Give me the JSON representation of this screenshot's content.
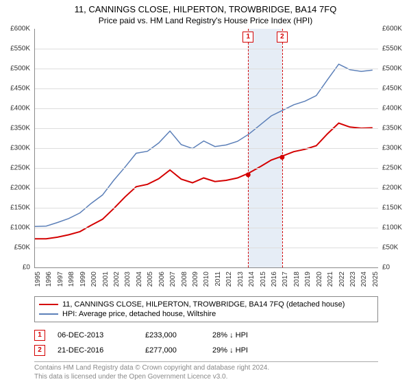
{
  "title": "11, CANNINGS CLOSE, HILPERTON, TROWBRIDGE, BA14 7FQ",
  "subtitle": "Price paid vs. HM Land Registry's House Price Index (HPI)",
  "chart": {
    "type": "line",
    "background_color": "#ffffff",
    "grid_color": "#dddddd",
    "axis_color": "#888888",
    "x": {
      "ticks": [
        "1995",
        "1996",
        "1997",
        "1998",
        "1999",
        "2000",
        "2001",
        "2002",
        "2003",
        "2004",
        "2005",
        "2006",
        "2007",
        "2008",
        "2009",
        "2010",
        "2011",
        "2012",
        "2013",
        "2014",
        "2015",
        "2016",
        "2017",
        "2018",
        "2019",
        "2020",
        "2021",
        "2022",
        "2023",
        "2024",
        "2025"
      ],
      "min": 1995,
      "max": 2025.5
    },
    "y": {
      "min": 0,
      "max": 600000,
      "step": 50000,
      "labels": [
        "£0",
        "£50K",
        "£100K",
        "£150K",
        "£200K",
        "£250K",
        "£300K",
        "£350K",
        "£400K",
        "£450K",
        "£500K",
        "£550K",
        "£600K"
      ]
    },
    "series": [
      {
        "name": "property",
        "color": "#d40000",
        "width": 2,
        "points": [
          [
            1995,
            72000
          ],
          [
            1996,
            72000
          ],
          [
            1997,
            76000
          ],
          [
            1998,
            82000
          ],
          [
            1999,
            90000
          ],
          [
            2000,
            106000
          ],
          [
            2001,
            121000
          ],
          [
            2002,
            148000
          ],
          [
            2003,
            177000
          ],
          [
            2004,
            203000
          ],
          [
            2005,
            209000
          ],
          [
            2006,
            223000
          ],
          [
            2007,
            245000
          ],
          [
            2008,
            222000
          ],
          [
            2009,
            213000
          ],
          [
            2010,
            225000
          ],
          [
            2011,
            216000
          ],
          [
            2012,
            219000
          ],
          [
            2013,
            225000
          ],
          [
            2014,
            237000
          ],
          [
            2015,
            253000
          ],
          [
            2016,
            270000
          ],
          [
            2017,
            280000
          ],
          [
            2018,
            291000
          ],
          [
            2019,
            297000
          ],
          [
            2020,
            306000
          ],
          [
            2021,
            336000
          ],
          [
            2022,
            363000
          ],
          [
            2023,
            353000
          ],
          [
            2024,
            350000
          ],
          [
            2025,
            351000
          ]
        ]
      },
      {
        "name": "hpi",
        "color": "#5b7fb8",
        "width": 1.5,
        "points": [
          [
            1995,
            103000
          ],
          [
            1996,
            104000
          ],
          [
            1997,
            113000
          ],
          [
            1998,
            123000
          ],
          [
            1999,
            137000
          ],
          [
            2000,
            161000
          ],
          [
            2001,
            182000
          ],
          [
            2002,
            219000
          ],
          [
            2003,
            252000
          ],
          [
            2004,
            287000
          ],
          [
            2005,
            292000
          ],
          [
            2006,
            313000
          ],
          [
            2007,
            343000
          ],
          [
            2008,
            309000
          ],
          [
            2009,
            299000
          ],
          [
            2010,
            318000
          ],
          [
            2011,
            304000
          ],
          [
            2012,
            308000
          ],
          [
            2013,
            317000
          ],
          [
            2014,
            335000
          ],
          [
            2015,
            358000
          ],
          [
            2016,
            381000
          ],
          [
            2017,
            395000
          ],
          [
            2018,
            409000
          ],
          [
            2019,
            418000
          ],
          [
            2020,
            432000
          ],
          [
            2021,
            472000
          ],
          [
            2022,
            511000
          ],
          [
            2023,
            497000
          ],
          [
            2024,
            493000
          ],
          [
            2025,
            496000
          ]
        ]
      }
    ],
    "sale_points": [
      {
        "x": 2013.95,
        "y": 233000,
        "color": "#d40000"
      },
      {
        "x": 2016.97,
        "y": 277000,
        "color": "#d40000"
      }
    ],
    "band": {
      "from": 2013.95,
      "to": 2016.97,
      "color": "rgba(200,215,235,0.45)"
    },
    "markers": [
      {
        "num": "1",
        "x": 2013.95,
        "color": "#d40000"
      },
      {
        "num": "2",
        "x": 2016.97,
        "color": "#d40000"
      }
    ]
  },
  "legend": {
    "items": [
      {
        "color": "#d40000",
        "label": "11, CANNINGS CLOSE, HILPERTON, TROWBRIDGE, BA14 7FQ (detached house)"
      },
      {
        "color": "#5b7fb8",
        "label": "HPI: Average price, detached house, Wiltshire"
      }
    ]
  },
  "sales": [
    {
      "num": "1",
      "color": "#d40000",
      "date": "06-DEC-2013",
      "price": "£233,000",
      "delta": "28% ↓ HPI"
    },
    {
      "num": "2",
      "color": "#d40000",
      "date": "21-DEC-2016",
      "price": "£277,000",
      "delta": "29% ↓ HPI"
    }
  ],
  "footer": {
    "line1": "Contains HM Land Registry data © Crown copyright and database right 2024.",
    "line2": "This data is licensed under the Open Government Licence v3.0."
  }
}
